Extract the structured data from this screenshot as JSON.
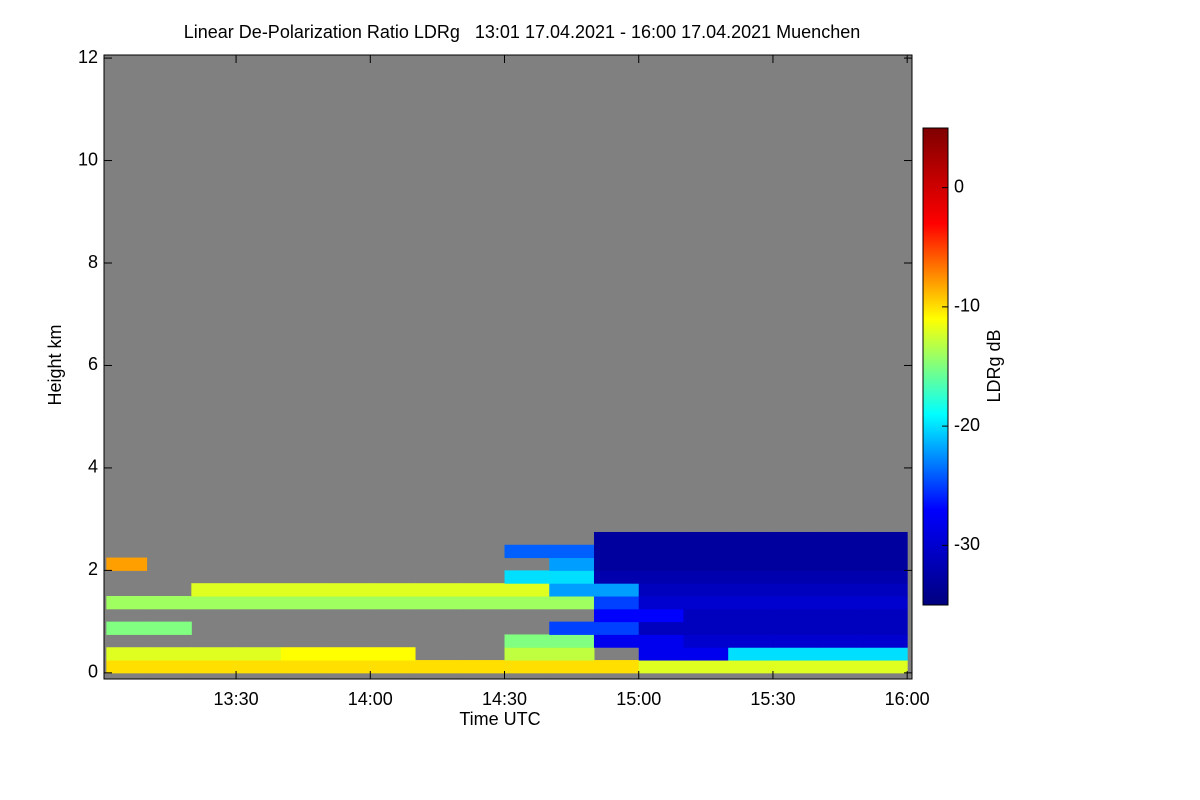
{
  "chart_data": {
    "type": "heatmap",
    "title": "Linear De-Polarization Ratio LDRg   13:01 17.04.2021 - 16:00 17.04.2021 Muenchen",
    "xlabel": "Time UTC",
    "ylabel": "Height km",
    "colorbar_label": "LDRg dB",
    "xlim": [
      13.008,
      16.018
    ],
    "xticks": [
      {
        "value": 13.5,
        "label": "13:30"
      },
      {
        "value": 14,
        "label": "14:00"
      },
      {
        "value": 14.5,
        "label": "14:30"
      },
      {
        "value": 15,
        "label": "15:00"
      },
      {
        "value": 15.5,
        "label": "15:30"
      },
      {
        "value": 16,
        "label": "16:00"
      }
    ],
    "ylim": [
      -0.12,
      12.06
    ],
    "yticks": [
      0,
      2,
      4,
      6,
      8,
      10,
      12
    ],
    "zlim": [
      -35,
      5
    ],
    "zticks": [
      0,
      -10,
      -20,
      -30
    ],
    "colorscale": [
      "#00007f",
      "#0000ff",
      "#00ffff",
      "#ffff00",
      "#ff0000",
      "#7f0000"
    ],
    "background": "#808080",
    "x_edges": [
      13.0167,
      13.1667,
      13.3333,
      13.5,
      13.6667,
      13.8333,
      14,
      14.1667,
      14.3333,
      14.5,
      14.6667,
      14.8333,
      15,
      15.1667,
      15.3333,
      15.5,
      15.6667,
      15.8333,
      16.0
    ],
    "y_edges": [
      0,
      0.25,
      0.5,
      0.75,
      1.0,
      1.25,
      1.5,
      1.75,
      2.0,
      2.25,
      2.5,
      2.75
    ],
    "z": [
      [
        -10,
        -10,
        -10,
        -10,
        -10,
        -10,
        -10,
        -10,
        -10,
        -10,
        -10,
        -10,
        -12,
        -12,
        -12,
        -12,
        -12,
        -12
      ],
      [
        -12,
        -12,
        -12,
        -12,
        -11,
        -11,
        -11,
        null,
        null,
        -13,
        -13,
        null,
        -28,
        -28,
        -20,
        -20,
        -20,
        -20
      ],
      [
        null,
        null,
        null,
        null,
        null,
        null,
        null,
        null,
        null,
        -15,
        -15,
        -28,
        -28,
        -30,
        -30,
        -30,
        -30,
        -30
      ],
      [
        -15,
        -15,
        null,
        null,
        null,
        null,
        null,
        null,
        null,
        null,
        -25,
        -25,
        -31,
        -31,
        -31,
        -31,
        -31,
        -31
      ],
      [
        null,
        null,
        null,
        null,
        null,
        null,
        null,
        null,
        null,
        null,
        null,
        -27,
        -27,
        -31,
        -31,
        -31,
        -31,
        -31
      ],
      [
        -14,
        -14,
        -14,
        -14,
        -14,
        -14,
        -14,
        -14,
        -14,
        -14,
        -14,
        -25,
        -30,
        -30,
        -30,
        -30,
        -30,
        -30
      ],
      [
        null,
        null,
        -12,
        -12,
        -12,
        -12,
        -12,
        -12,
        -12,
        -12,
        -22,
        -22,
        -31,
        -31,
        -31,
        -31,
        -31,
        -31
      ],
      [
        null,
        null,
        null,
        null,
        null,
        null,
        null,
        null,
        null,
        -20,
        -20,
        -32,
        -32,
        -32,
        -32,
        -32,
        -32,
        -32
      ],
      [
        -8,
        null,
        null,
        null,
        null,
        null,
        null,
        null,
        null,
        null,
        -22,
        -33,
        -33,
        -33,
        -33,
        -33,
        -33,
        -33
      ],
      [
        null,
        null,
        null,
        null,
        null,
        null,
        null,
        null,
        null,
        -24,
        -24,
        -33,
        -33,
        -33,
        -33,
        -33,
        -33,
        -33
      ],
      [
        null,
        null,
        null,
        null,
        null,
        null,
        null,
        null,
        null,
        null,
        null,
        -33,
        -33,
        -33,
        -33,
        -33,
        -33,
        -33
      ]
    ]
  }
}
